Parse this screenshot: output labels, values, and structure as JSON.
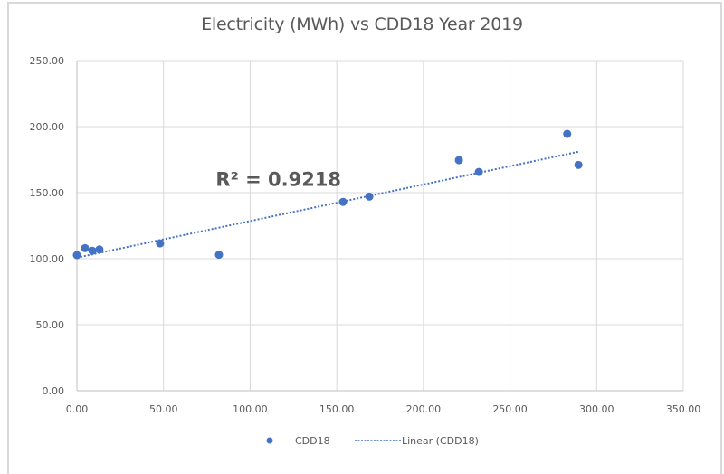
{
  "chart_data": {
    "type": "scatter",
    "title": "Electricity (MWh) vs CDD18 Year 2019",
    "xlabel": "",
    "ylabel": "",
    "xlim": [
      0,
      350
    ],
    "ylim": [
      0,
      250
    ],
    "x_ticks": [
      "0.00",
      "50.00",
      "100.00",
      "150.00",
      "200.00",
      "250.00",
      "300.00",
      "350.00"
    ],
    "y_ticks": [
      "0.00",
      "50.00",
      "100.00",
      "150.00",
      "200.00",
      "250.00"
    ],
    "x_tick_values": [
      0,
      50,
      100,
      150,
      200,
      250,
      300,
      350
    ],
    "y_tick_values": [
      0,
      50,
      100,
      150,
      200,
      250
    ],
    "grid": true,
    "legend_position": "bottom",
    "series": [
      {
        "name": "CDD18",
        "color": "#4472c4",
        "points": [
          {
            "x": 0.0,
            "y": 102.7
          },
          {
            "x": 4.7,
            "y": 108.0
          },
          {
            "x": 8.9,
            "y": 106.0
          },
          {
            "x": 13.0,
            "y": 107.0
          },
          {
            "x": 48.0,
            "y": 111.6
          },
          {
            "x": 82.0,
            "y": 103.0
          },
          {
            "x": 153.6,
            "y": 143.0
          },
          {
            "x": 168.8,
            "y": 147.0
          },
          {
            "x": 220.5,
            "y": 174.6
          },
          {
            "x": 232.0,
            "y": 165.7
          },
          {
            "x": 283.0,
            "y": 194.5
          },
          {
            "x": 289.5,
            "y": 171.0
          }
        ]
      }
    ],
    "trendline": {
      "name": "Linear (CDD18)",
      "type": "linear",
      "style": "dotted",
      "color": "#4472c4",
      "x_range": [
        0,
        289.5
      ],
      "slope": 0.277,
      "intercept": 100.8
    },
    "annotations": [
      {
        "text": "R² = 0.9218",
        "x": 100,
        "y": 158
      }
    ],
    "legend": [
      {
        "label": "CDD18",
        "marker": "dot"
      },
      {
        "label": "Linear (CDD18)",
        "marker": "dotted-line"
      }
    ]
  }
}
